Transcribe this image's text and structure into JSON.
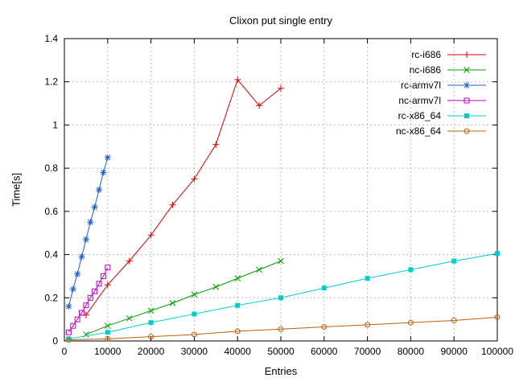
{
  "chart_data": {
    "type": "line",
    "title": "Clixon put single entry",
    "xlabel": "Entries",
    "ylabel": "Time[s]",
    "xlim": [
      0,
      100000
    ],
    "ylim": [
      0,
      1.4
    ],
    "xticks": [
      0,
      10000,
      20000,
      30000,
      40000,
      50000,
      60000,
      70000,
      80000,
      90000,
      100000
    ],
    "yticks": [
      0,
      0.2,
      0.4,
      0.6,
      0.8,
      1,
      1.2,
      1.4
    ],
    "grid": true,
    "legend_position": "top-right-inside",
    "series": [
      {
        "name": "rc-i686",
        "color": "#e00000",
        "marker": "plus",
        "points": [
          [
            5000,
            0.12
          ],
          [
            10000,
            0.26
          ],
          [
            15000,
            0.37
          ],
          [
            20000,
            0.49
          ],
          [
            25000,
            0.63
          ],
          [
            30000,
            0.75
          ],
          [
            35000,
            0.91
          ],
          [
            40000,
            1.21
          ],
          [
            45000,
            1.09
          ],
          [
            50000,
            1.17
          ]
        ]
      },
      {
        "name": "nc-i686",
        "color": "#00a000",
        "marker": "cross",
        "points": [
          [
            5000,
            0.03
          ],
          [
            10000,
            0.07
          ],
          [
            15000,
            0.105
          ],
          [
            20000,
            0.14
          ],
          [
            25000,
            0.175
          ],
          [
            30000,
            0.215
          ],
          [
            35000,
            0.25
          ],
          [
            40000,
            0.29
          ],
          [
            45000,
            0.33
          ],
          [
            50000,
            0.37
          ]
        ]
      },
      {
        "name": "rc-armv7l",
        "color": "#2060cc",
        "marker": "asterisk",
        "points": [
          [
            1000,
            0.16
          ],
          [
            2000,
            0.24
          ],
          [
            3000,
            0.31
          ],
          [
            4000,
            0.39
          ],
          [
            5000,
            0.47
          ],
          [
            6000,
            0.55
          ],
          [
            7000,
            0.62
          ],
          [
            8000,
            0.7
          ],
          [
            9000,
            0.78
          ],
          [
            10000,
            0.85
          ]
        ]
      },
      {
        "name": "nc-armv7l",
        "color": "#bf00bf",
        "marker": "square-open",
        "points": [
          [
            1000,
            0.04
          ],
          [
            2000,
            0.07
          ],
          [
            3000,
            0.1
          ],
          [
            4000,
            0.13
          ],
          [
            5000,
            0.165
          ],
          [
            6000,
            0.2
          ],
          [
            7000,
            0.23
          ],
          [
            8000,
            0.265
          ],
          [
            9000,
            0.3
          ],
          [
            10000,
            0.34
          ]
        ]
      },
      {
        "name": "rc-x86_64",
        "color": "#00cccc",
        "marker": "square-filled",
        "points": [
          [
            1000,
            0.01
          ],
          [
            10000,
            0.04
          ],
          [
            20000,
            0.085
          ],
          [
            30000,
            0.125
          ],
          [
            40000,
            0.165
          ],
          [
            50000,
            0.2
          ],
          [
            60000,
            0.245
          ],
          [
            70000,
            0.29
          ],
          [
            80000,
            0.33
          ],
          [
            90000,
            0.37
          ],
          [
            100000,
            0.405
          ]
        ]
      },
      {
        "name": "nc-x86_64",
        "color": "#b86010",
        "marker": "circle-open",
        "points": [
          [
            1000,
            0.005
          ],
          [
            10000,
            0.01
          ],
          [
            20000,
            0.02
          ],
          [
            30000,
            0.03
          ],
          [
            40000,
            0.045
          ],
          [
            50000,
            0.055
          ],
          [
            60000,
            0.065
          ],
          [
            70000,
            0.075
          ],
          [
            80000,
            0.085
          ],
          [
            90000,
            0.095
          ],
          [
            100000,
            0.11
          ]
        ]
      }
    ]
  }
}
